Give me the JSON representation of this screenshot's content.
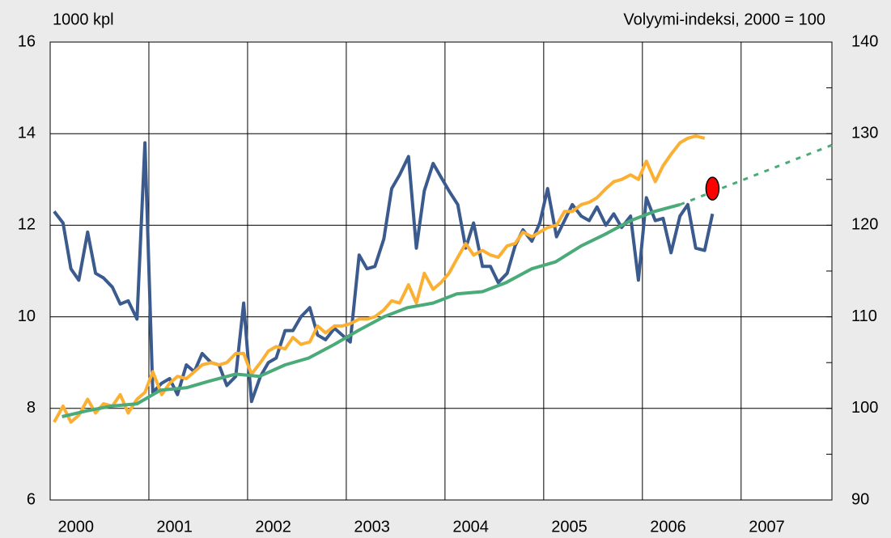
{
  "chart_data": {
    "type": "line",
    "y_label": "1000 kpl",
    "y2_label": "Volyymi-indeksi, 2000 = 100",
    "xlim": [
      2000,
      2007.92
    ],
    "xticks": [
      {
        "value": 2000,
        "label": "2000"
      },
      {
        "value": 2001,
        "label": "2001"
      },
      {
        "value": 2002,
        "label": "2002"
      },
      {
        "value": 2003,
        "label": "2003"
      },
      {
        "value": 2004,
        "label": "2004"
      },
      {
        "value": 2005,
        "label": "2005"
      },
      {
        "value": 2006,
        "label": "2006"
      },
      {
        "value": 2007,
        "label": "2007"
      }
    ],
    "ylim": [
      6,
      16
    ],
    "yticks": [
      6,
      8,
      10,
      12,
      14,
      16
    ],
    "y2lim": [
      90,
      140
    ],
    "y2ticks": [
      90,
      100,
      110,
      120,
      130,
      140
    ],
    "y2minorticks": [
      95,
      105,
      115,
      125,
      135
    ],
    "grid": true,
    "series": [
      {
        "color": "#3b5a8e",
        "style": "solid",
        "x": [
          2000.04,
          2000.13,
          2000.21,
          2000.29,
          2000.38,
          2000.46,
          2000.54,
          2000.63,
          2000.71,
          2000.79,
          2000.88,
          2000.96,
          2001.04,
          2001.13,
          2001.21,
          2001.29,
          2001.38,
          2001.46,
          2001.54,
          2001.63,
          2001.71,
          2001.79,
          2001.88,
          2001.96,
          2002.04,
          2002.13,
          2002.21,
          2002.29,
          2002.38,
          2002.46,
          2002.54,
          2002.63,
          2002.71,
          2002.79,
          2002.88,
          2002.96,
          2003.04,
          2003.13,
          2003.21,
          2003.29,
          2003.38,
          2003.46,
          2003.54,
          2003.63,
          2003.71,
          2003.79,
          2003.88,
          2003.96,
          2004.04,
          2004.13,
          2004.21,
          2004.29,
          2004.38,
          2004.46,
          2004.54,
          2004.63,
          2004.71,
          2004.79,
          2004.88,
          2004.96,
          2005.04,
          2005.13,
          2005.21,
          2005.29,
          2005.38,
          2005.46,
          2005.54,
          2005.63,
          2005.71,
          2005.79,
          2005.88,
          2005.96,
          2006.04,
          2006.13,
          2006.21,
          2006.29,
          2006.38,
          2006.46,
          2006.54,
          2006.63,
          2006.71
        ],
        "values": [
          12.3,
          12.05,
          11.05,
          10.8,
          11.85,
          10.95,
          10.85,
          10.65,
          10.28,
          10.35,
          9.95,
          13.8,
          8.35,
          8.55,
          8.65,
          8.3,
          8.95,
          8.8,
          9.2,
          9.0,
          8.95,
          8.5,
          8.7,
          10.3,
          8.15,
          8.7,
          9.0,
          9.1,
          9.7,
          9.7,
          10.0,
          10.2,
          9.6,
          9.5,
          9.75,
          9.6,
          9.45,
          11.35,
          11.05,
          11.1,
          11.7,
          12.8,
          13.1,
          13.5,
          11.5,
          12.75,
          13.35,
          13.05,
          12.75,
          12.45,
          11.5,
          12.05,
          11.1,
          11.1,
          10.75,
          10.95,
          11.55,
          11.9,
          11.65,
          12.05,
          12.8,
          11.75,
          12.1,
          12.45,
          12.2,
          12.1,
          12.4,
          12.0,
          12.25,
          11.95,
          12.2,
          10.8,
          12.6,
          12.1,
          12.15,
          11.4,
          12.2,
          12.45,
          11.5,
          11.45,
          12.25
        ]
      },
      {
        "color": "#fbb034",
        "style": "solid",
        "axis": "y2",
        "x": [
          2000.04,
          2000.13,
          2000.21,
          2000.29,
          2000.38,
          2000.46,
          2000.54,
          2000.63,
          2000.71,
          2000.79,
          2000.88,
          2000.96,
          2001.04,
          2001.13,
          2001.21,
          2001.29,
          2001.38,
          2001.46,
          2001.54,
          2001.63,
          2001.71,
          2001.79,
          2001.88,
          2001.96,
          2002.04,
          2002.13,
          2002.21,
          2002.29,
          2002.38,
          2002.46,
          2002.54,
          2002.63,
          2002.71,
          2002.79,
          2002.88,
          2002.96,
          2003.04,
          2003.13,
          2003.21,
          2003.29,
          2003.38,
          2003.46,
          2003.54,
          2003.63,
          2003.71,
          2003.79,
          2003.88,
          2003.96,
          2004.04,
          2004.13,
          2004.21,
          2004.29,
          2004.38,
          2004.46,
          2004.54,
          2004.63,
          2004.71,
          2004.79,
          2004.88,
          2004.96,
          2005.04,
          2005.13,
          2005.21,
          2005.29,
          2005.38,
          2005.46,
          2005.54,
          2005.63,
          2005.71,
          2005.79,
          2005.88,
          2005.96,
          2006.04,
          2006.13,
          2006.21,
          2006.29,
          2006.38,
          2006.46,
          2006.54,
          2006.63
        ],
        "values": [
          98.5,
          100.25,
          98.5,
          99.25,
          101,
          99.5,
          100.5,
          100.25,
          101.5,
          99.5,
          101,
          101.75,
          104,
          101.5,
          102.75,
          103.5,
          103.25,
          104,
          104.75,
          105,
          104.75,
          105,
          106,
          106,
          103.75,
          105,
          106.25,
          106.75,
          106.5,
          107.75,
          107,
          107.25,
          109,
          108.25,
          109,
          109,
          109.25,
          109.75,
          109.75,
          110,
          110.75,
          111.75,
          111.5,
          113.5,
          111.5,
          114.75,
          113,
          113.75,
          114.75,
          116.5,
          118,
          116.75,
          117.25,
          116.75,
          116.5,
          117.75,
          118,
          119.25,
          118.75,
          119.25,
          119.75,
          120,
          121.5,
          121.5,
          122.25,
          122.5,
          123,
          124,
          124.75,
          125,
          125.5,
          125,
          127,
          124.75,
          126.5,
          127.75,
          129,
          129.5,
          129.75,
          129.5
        ]
      },
      {
        "color": "#4aaa78",
        "style": "solid",
        "axis": "y2",
        "x": [
          2000.12,
          2000.38,
          2000.62,
          2000.88,
          2001.12,
          2001.38,
          2001.62,
          2001.88,
          2002.12,
          2002.38,
          2002.62,
          2002.88,
          2003.12,
          2003.38,
          2003.62,
          2003.88,
          2004.12,
          2004.38,
          2004.62,
          2004.88,
          2005.12,
          2005.38,
          2005.62,
          2005.88,
          2006.12,
          2006.38
        ],
        "values": [
          99.1,
          99.75,
          100.25,
          100.5,
          102,
          102.25,
          103,
          103.75,
          103.5,
          104.75,
          105.5,
          107,
          108.5,
          110,
          111,
          111.5,
          112.5,
          112.75,
          113.75,
          115.25,
          116,
          117.75,
          119,
          120.5,
          121.5,
          122.25
        ]
      },
      {
        "color": "#4aaa78",
        "style": "dotted",
        "axis": "y2",
        "x": [
          2006.38,
          2007.92
        ],
        "values": [
          122.25,
          128.75
        ]
      },
      {
        "color": "#ff0000",
        "style": "ellipse",
        "axis": "y2",
        "x": [
          2006.71
        ],
        "values": [
          124
        ]
      }
    ]
  }
}
